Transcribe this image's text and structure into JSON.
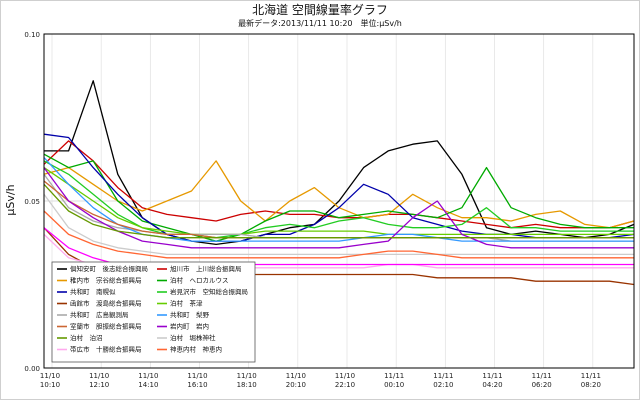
{
  "chart_data": {
    "type": "line",
    "title": "北海道 空間線量率グラフ",
    "subtitle": "最新データ:2013/11/11 10:20　単位:μSv/h",
    "ylabel": "μSv/h",
    "ylim": [
      0,
      0.1
    ],
    "yticks": [
      "0.00",
      "0.05",
      "0.10"
    ],
    "ytick_values": [
      0,
      0.05,
      0.1
    ],
    "x_ticks": [
      [
        "11/10",
        "10:10"
      ],
      [
        "11/10",
        "12:10"
      ],
      [
        "11/10",
        "14:10"
      ],
      [
        "11/10",
        "16:10"
      ],
      [
        "11/10",
        "18:10"
      ],
      [
        "11/10",
        "20:10"
      ],
      [
        "11/10",
        "22:10"
      ],
      [
        "11/11",
        "00:10"
      ],
      [
        "11/11",
        "02:10"
      ],
      [
        "11/11",
        "04:20"
      ],
      [
        "11/11",
        "06:20"
      ],
      [
        "11/11",
        "08:20"
      ]
    ],
    "x": [
      "11/10 10:10",
      "11/10 11:10",
      "11/10 12:10",
      "11/10 13:10",
      "11/10 14:10",
      "11/10 15:10",
      "11/10 16:10",
      "11/10 17:10",
      "11/10 18:10",
      "11/10 19:10",
      "11/10 20:10",
      "11/10 21:10",
      "11/10 22:10",
      "11/10 23:10",
      "11/11 00:10",
      "11/11 01:10",
      "11/11 02:10",
      "11/11 03:10",
      "11/11 04:20",
      "11/11 05:20",
      "11/11 06:20",
      "11/11 07:20",
      "11/11 08:20",
      "11/11 09:20",
      "11/11 10:20"
    ],
    "grid": true,
    "legend_placement": "bottom-left",
    "series": [
      {
        "name": "俱知安町　後志総合振興局",
        "color": "#000000",
        "values": [
          0.065,
          0.065,
          0.086,
          0.058,
          0.045,
          0.04,
          0.038,
          0.037,
          0.038,
          0.04,
          0.042,
          0.043,
          0.05,
          0.06,
          0.065,
          0.067,
          0.068,
          0.058,
          0.042,
          0.04,
          0.041,
          0.04,
          0.039,
          0.04,
          0.043
        ]
      },
      {
        "name": "旭川市　上川総合振興局",
        "color": "#cc0000",
        "values": [
          0.061,
          0.068,
          0.062,
          0.054,
          0.048,
          0.046,
          0.045,
          0.044,
          0.046,
          0.047,
          0.046,
          0.046,
          0.045,
          0.045,
          0.046,
          0.046,
          0.045,
          0.044,
          0.043,
          0.042,
          0.043,
          0.042,
          0.042,
          0.042,
          0.044
        ]
      },
      {
        "name": "稚内市　宗谷総合振興局",
        "color": "#e69900",
        "values": [
          0.058,
          0.06,
          0.055,
          0.05,
          0.047,
          0.05,
          0.053,
          0.062,
          0.05,
          0.044,
          0.05,
          0.054,
          0.048,
          0.045,
          0.046,
          0.052,
          0.048,
          0.045,
          0.045,
          0.044,
          0.046,
          0.047,
          0.043,
          0.042,
          0.044
        ]
      },
      {
        "name": "泊村　ヘロカルウス",
        "color": "#00aa00",
        "values": [
          0.064,
          0.06,
          0.062,
          0.05,
          0.044,
          0.042,
          0.04,
          0.038,
          0.04,
          0.044,
          0.047,
          0.047,
          0.045,
          0.046,
          0.047,
          0.046,
          0.045,
          0.048,
          0.06,
          0.048,
          0.045,
          0.043,
          0.042,
          0.042,
          0.042
        ]
      },
      {
        "name": "共和町　南幌似",
        "color": "#0000aa",
        "values": [
          0.07,
          0.069,
          0.06,
          0.052,
          0.045,
          0.04,
          0.038,
          0.038,
          0.038,
          0.04,
          0.04,
          0.043,
          0.048,
          0.055,
          0.052,
          0.045,
          0.043,
          0.041,
          0.04,
          0.04,
          0.039,
          0.039,
          0.039,
          0.039,
          0.04
        ]
      },
      {
        "name": "岩見沢市　空知総合振興局",
        "color": "#22cc22",
        "values": [
          0.062,
          0.058,
          0.052,
          0.046,
          0.042,
          0.04,
          0.04,
          0.039,
          0.04,
          0.042,
          0.043,
          0.042,
          0.044,
          0.045,
          0.043,
          0.042,
          0.042,
          0.043,
          0.048,
          0.042,
          0.042,
          0.041,
          0.041,
          0.041,
          0.041
        ]
      },
      {
        "name": "函館市　渡島総合振興局",
        "color": "#993300",
        "values": [
          0.042,
          0.034,
          0.03,
          0.029,
          0.029,
          0.028,
          0.028,
          0.028,
          0.028,
          0.028,
          0.028,
          0.028,
          0.028,
          0.028,
          0.028,
          0.028,
          0.027,
          0.027,
          0.027,
          0.027,
          0.026,
          0.026,
          0.026,
          0.026,
          0.025
        ]
      },
      {
        "name": "泊村　茶津",
        "color": "#66cc00",
        "values": [
          0.06,
          0.055,
          0.05,
          0.045,
          0.042,
          0.041,
          0.04,
          0.04,
          0.04,
          0.041,
          0.041,
          0.041,
          0.041,
          0.041,
          0.04,
          0.04,
          0.04,
          0.04,
          0.04,
          0.04,
          0.04,
          0.04,
          0.04,
          0.04,
          0.04
        ]
      },
      {
        "name": "共和町　広島観測局",
        "color": "#aaaaaa",
        "values": [
          0.058,
          0.048,
          0.044,
          0.042,
          0.041,
          0.04,
          0.04,
          0.04,
          0.04,
          0.039,
          0.039,
          0.039,
          0.039,
          0.039,
          0.039,
          0.039,
          0.039,
          0.039,
          0.039,
          0.038,
          0.038,
          0.038,
          0.038,
          0.038,
          0.038
        ]
      },
      {
        "name": "共和町　梨野",
        "color": "#3399ff",
        "values": [
          0.063,
          0.055,
          0.048,
          0.043,
          0.04,
          0.039,
          0.038,
          0.038,
          0.038,
          0.038,
          0.038,
          0.038,
          0.038,
          0.039,
          0.04,
          0.04,
          0.039,
          0.038,
          0.038,
          0.038,
          0.038,
          0.038,
          0.038,
          0.038,
          0.038
        ]
      },
      {
        "name": "室蘭市　胆振総合振興局",
        "color": "#cc6633",
        "values": [
          0.056,
          0.05,
          0.046,
          0.043,
          0.041,
          0.04,
          0.04,
          0.039,
          0.039,
          0.039,
          0.039,
          0.039,
          0.039,
          0.039,
          0.039,
          0.039,
          0.039,
          0.039,
          0.039,
          0.039,
          0.039,
          0.039,
          0.039,
          0.039,
          0.039
        ]
      },
      {
        "name": "岩内町　岩内",
        "color": "#9900cc",
        "values": [
          0.06,
          0.05,
          0.045,
          0.041,
          0.038,
          0.037,
          0.036,
          0.036,
          0.036,
          0.036,
          0.036,
          0.036,
          0.036,
          0.037,
          0.038,
          0.045,
          0.05,
          0.04,
          0.037,
          0.036,
          0.036,
          0.036,
          0.036,
          0.036,
          0.036
        ]
      },
      {
        "name": "泊村　泊沼",
        "color": "#669900",
        "values": [
          0.055,
          0.047,
          0.043,
          0.041,
          0.04,
          0.039,
          0.039,
          0.039,
          0.039,
          0.039,
          0.039,
          0.039,
          0.039,
          0.039,
          0.039,
          0.039,
          0.039,
          0.039,
          0.039,
          0.039,
          0.039,
          0.039,
          0.039,
          0.039,
          0.039
        ]
      },
      {
        "name": "泊村　堀株神社",
        "color": "#cccccc",
        "values": [
          0.052,
          0.042,
          0.038,
          0.036,
          0.035,
          0.034,
          0.034,
          0.034,
          0.034,
          0.034,
          0.034,
          0.034,
          0.034,
          0.034,
          0.034,
          0.034,
          0.034,
          0.034,
          0.034,
          0.034,
          0.034,
          0.034,
          0.034,
          0.034,
          0.034
        ]
      },
      {
        "name": "帯広市　十勝総合振興局",
        "color": "#ffaaee",
        "values": [
          0.04,
          0.033,
          0.031,
          0.03,
          0.03,
          0.03,
          0.03,
          0.03,
          0.03,
          0.03,
          0.03,
          0.03,
          0.03,
          0.03,
          0.031,
          0.031,
          0.03,
          0.03,
          0.03,
          0.03,
          0.03,
          0.03,
          0.03,
          0.03,
          0.03
        ]
      },
      {
        "name": "神恵内村　神恵内",
        "color": "#ff6633",
        "values": [
          0.047,
          0.04,
          0.037,
          0.035,
          0.034,
          0.033,
          0.033,
          0.033,
          0.033,
          0.033,
          0.033,
          0.033,
          0.033,
          0.034,
          0.035,
          0.035,
          0.034,
          0.033,
          0.033,
          0.033,
          0.033,
          0.033,
          0.033,
          0.033,
          0.033
        ]
      },
      {
        "name": "",
        "color": "#ff00ff",
        "values": [
          0.042,
          0.036,
          0.033,
          0.031,
          0.031,
          0.031,
          0.031,
          0.031,
          0.031,
          0.031,
          0.031,
          0.031,
          0.031,
          0.031,
          0.031,
          0.031,
          0.031,
          0.031,
          0.031,
          0.031,
          0.031,
          0.031,
          0.031,
          0.031,
          0.031
        ]
      }
    ]
  }
}
